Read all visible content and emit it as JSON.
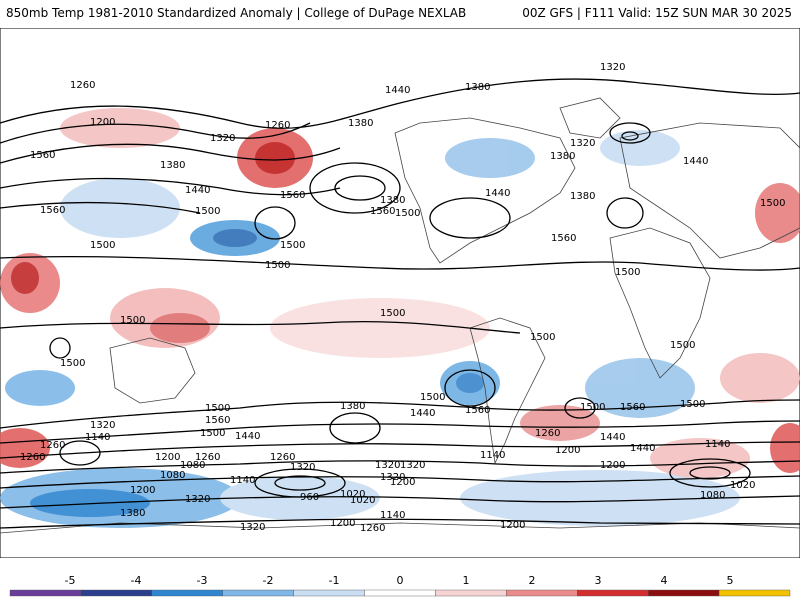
{
  "header": {
    "title": "850mb Temp 1981-2010 Standardized Anomaly | College of DuPage NEXLAB",
    "run": "00Z GFS | F111 Valid: 15Z SUN MAR 30 2025"
  },
  "colorbar": {
    "ticks": [
      "-5",
      "-4",
      "-3",
      "-2",
      "-1",
      "0",
      "1",
      "2",
      "3",
      "4",
      "5"
    ],
    "colors": [
      "#6a3d9a",
      "#2b3f8c",
      "#2e86d1",
      "#7fb8e6",
      "#c9def3",
      "#ffffff",
      "#f7d4d4",
      "#ea8a8a",
      "#d42f2f",
      "#8c0f0f",
      "#f2c200"
    ]
  },
  "contour_labels": [
    "1260",
    "1320",
    "1440",
    "1380",
    "1200",
    "1260",
    "1320",
    "1380",
    "1560",
    "1320",
    "1440",
    "1440",
    "1560",
    "1380",
    "1380",
    "1440",
    "1500",
    "1560",
    "1380",
    "1500",
    "1560",
    "1500",
    "1500",
    "1500",
    "1560",
    "1380",
    "1500",
    "1500",
    "1500",
    "1500",
    "1500",
    "1500",
    "1500",
    "1500",
    "1500",
    "1560",
    "1500",
    "1560",
    "1320",
    "1500",
    "1440",
    "1380",
    "1560",
    "1440",
    "1500",
    "1140",
    "1440",
    "1260",
    "1260",
    "1200",
    "1260",
    "1320",
    "1140",
    "1200",
    "1080",
    "1260",
    "1320",
    "1200",
    "1020",
    "1080",
    "960",
    "1020",
    "1200",
    "1140",
    "1260",
    "1200",
    "1320",
    "1140",
    "1200",
    "1260",
    "1440",
    "1380",
    "1320",
    "1200",
    "1140",
    "1080",
    "1020",
    "1320",
    "1320"
  ]
}
